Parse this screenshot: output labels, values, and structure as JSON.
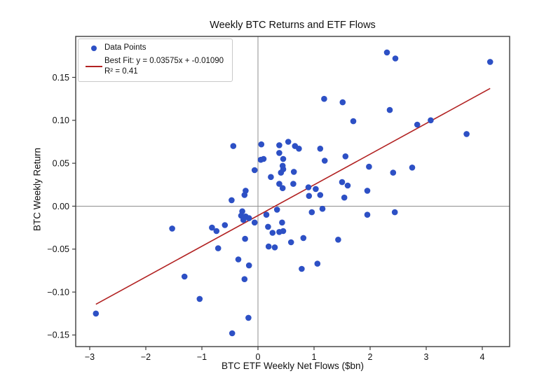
{
  "figure": {
    "background": "#ffffff"
  },
  "chart_data": {
    "type": "scatter",
    "title": "Weekly BTC Returns and ETF Flows",
    "xlabel": "BTC ETF Weekly Net Flows ($bn)",
    "ylabel": "BTC Weekly Return",
    "xlim": [
      -3.25,
      4.4875
    ],
    "ylim": [
      -0.1635,
      0.1977
    ],
    "xticks": [
      -3,
      -2,
      -1,
      0,
      1,
      2,
      3,
      4
    ],
    "yticks": [
      -0.15,
      -0.1,
      -0.05,
      0.0,
      0.05,
      0.1,
      0.15
    ],
    "grid": false,
    "zero_lines": true,
    "legend_position": "upper-left",
    "legend": {
      "points_label": "Data Points",
      "fit_label": "Best Fit: y = 0.03575x + -0.01090",
      "r2_label": "R² = 0.41"
    },
    "best_fit": {
      "slope": 0.03575,
      "intercept": -0.0109,
      "r2": 0.41,
      "x_start": -2.89,
      "x_end": 4.14
    },
    "colors": {
      "points": "#2d50c5",
      "fit_line": "#b22222",
      "zero_line": "#8f8f8f",
      "frame": "#3d3d3d",
      "text": "#111111"
    },
    "points": [
      [
        -2.89,
        -0.125
      ],
      [
        -1.53,
        -0.026
      ],
      [
        -1.31,
        -0.082
      ],
      [
        -1.04,
        -0.108
      ],
      [
        -0.82,
        -0.025
      ],
      [
        -0.74,
        -0.029
      ],
      [
        -0.71,
        -0.049
      ],
      [
        -0.59,
        -0.022
      ],
      [
        -0.47,
        0.007
      ],
      [
        -0.46,
        -0.148
      ],
      [
        -0.44,
        0.07
      ],
      [
        -0.35,
        -0.062
      ],
      [
        -0.3,
        -0.011
      ],
      [
        -0.28,
        -0.006
      ],
      [
        -0.26,
        -0.016
      ],
      [
        -0.24,
        0.013
      ],
      [
        -0.24,
        -0.085
      ],
      [
        -0.23,
        -0.038
      ],
      [
        -0.22,
        0.018
      ],
      [
        -0.22,
        -0.012
      ],
      [
        -0.17,
        -0.13
      ],
      [
        -0.16,
        -0.014
      ],
      [
        -0.16,
        -0.069
      ],
      [
        -0.06,
        0.042
      ],
      [
        -0.06,
        -0.019
      ],
      [
        0.05,
        0.054
      ],
      [
        0.06,
        0.072
      ],
      [
        0.1,
        0.055
      ],
      [
        0.15,
        -0.01
      ],
      [
        0.18,
        -0.024
      ],
      [
        0.19,
        -0.047
      ],
      [
        0.23,
        0.034
      ],
      [
        0.26,
        -0.031
      ],
      [
        0.3,
        -0.048
      ],
      [
        0.34,
        -0.004
      ],
      [
        0.38,
        0.071
      ],
      [
        0.38,
        0.062
      ],
      [
        0.38,
        0.026
      ],
      [
        0.38,
        -0.03
      ],
      [
        0.41,
        0.039
      ],
      [
        0.43,
        -0.019
      ],
      [
        0.44,
        0.047
      ],
      [
        0.44,
        0.021
      ],
      [
        0.45,
        0.055
      ],
      [
        0.45,
        0.043
      ],
      [
        0.45,
        -0.029
      ],
      [
        0.54,
        0.075
      ],
      [
        0.59,
        -0.042
      ],
      [
        0.63,
        0.026
      ],
      [
        0.64,
        0.04
      ],
      [
        0.66,
        0.07
      ],
      [
        0.73,
        0.067
      ],
      [
        0.78,
        -0.073
      ],
      [
        0.81,
        -0.037
      ],
      [
        0.9,
        0.022
      ],
      [
        0.91,
        0.012
      ],
      [
        0.96,
        -0.007
      ],
      [
        1.03,
        0.02
      ],
      [
        1.06,
        -0.067
      ],
      [
        1.11,
        0.067
      ],
      [
        1.11,
        0.013
      ],
      [
        1.15,
        -0.003
      ],
      [
        1.18,
        0.125
      ],
      [
        1.19,
        0.053
      ],
      [
        1.43,
        -0.039
      ],
      [
        1.5,
        0.028
      ],
      [
        1.51,
        0.121
      ],
      [
        1.54,
        0.01
      ],
      [
        1.56,
        0.058
      ],
      [
        1.6,
        0.024
      ],
      [
        1.7,
        0.099
      ],
      [
        1.95,
        0.018
      ],
      [
        1.95,
        -0.01
      ],
      [
        1.98,
        0.046
      ],
      [
        2.3,
        0.179
      ],
      [
        2.35,
        0.112
      ],
      [
        2.41,
        0.039
      ],
      [
        2.44,
        -0.007
      ],
      [
        2.45,
        0.172
      ],
      [
        2.75,
        0.045
      ],
      [
        2.84,
        0.095
      ],
      [
        3.08,
        0.1
      ],
      [
        3.72,
        0.084
      ],
      [
        4.14,
        0.168
      ]
    ]
  }
}
